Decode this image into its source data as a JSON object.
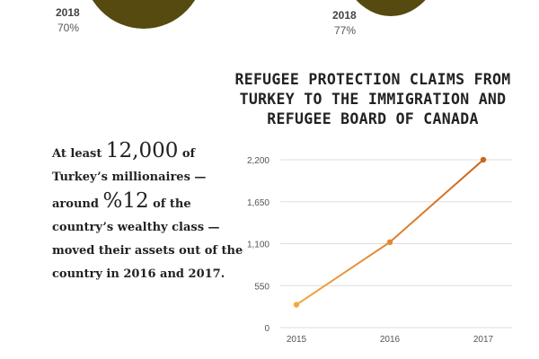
{
  "stats": {
    "left": {
      "year": "2018",
      "percent": "70%"
    },
    "right": {
      "year": "2018",
      "percent": "77%"
    }
  },
  "blurb": {
    "p1": "At least ",
    "big1": "12,000",
    "p2": " of Turkey’s millionaires — around ",
    "big2": "%12",
    "p3": " of the country’s wealthy class — moved their assets out of the country in 2016 and 2017."
  },
  "colors": {
    "blob": "#574a10",
    "line_start": "#f5a742",
    "line_end": "#c9651c",
    "grid": "#dddddd"
  },
  "chart_data": {
    "type": "line",
    "title": "REFUGEE PROTECTION CLAIMS FROM TURKEY TO THE IMMIGRATION AND REFUGEE BOARD OF CANADA",
    "x": [
      "2015",
      "2016",
      "2017"
    ],
    "series": [
      {
        "values": [
          300,
          1120,
          2200
        ]
      }
    ],
    "y_ticks": [
      0,
      550,
      1100,
      1650,
      2200
    ],
    "y_tick_labels": [
      "0",
      "550",
      "1,100",
      "1,650",
      "2,200"
    ],
    "ylim": [
      0,
      2200
    ],
    "grid": true,
    "legend": "none"
  }
}
